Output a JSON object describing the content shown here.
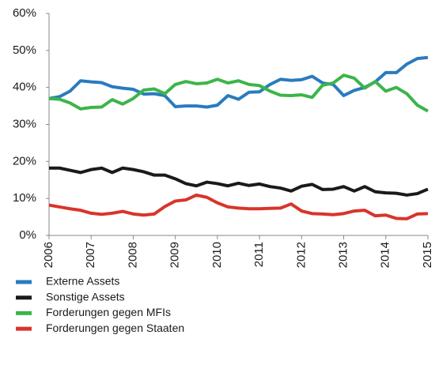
{
  "chart_data": {
    "type": "line",
    "x": [
      2006,
      2006.25,
      2006.5,
      2006.75,
      2007,
      2007.25,
      2007.5,
      2007.75,
      2008,
      2008.25,
      2008.5,
      2008.75,
      2009,
      2009.25,
      2009.5,
      2009.75,
      2010,
      2010.25,
      2010.5,
      2010.75,
      2011,
      2011.25,
      2011.5,
      2011.75,
      2012,
      2012.25,
      2012.5,
      2012.75,
      2013,
      2013.25,
      2013.5,
      2013.75,
      2014,
      2014.25,
      2014.5,
      2014.75,
      2015
    ],
    "xlim": [
      2006,
      2015
    ],
    "xticks": [
      2006,
      2007,
      2008,
      2009,
      2010,
      2011,
      2012,
      2013,
      2014,
      2015
    ],
    "ylim": [
      0,
      60
    ],
    "yticks": [
      {
        "value": 0,
        "label": "0%"
      },
      {
        "value": 10,
        "label": "10%"
      },
      {
        "value": 20,
        "label": "20%"
      },
      {
        "value": 30,
        "label": "30%"
      },
      {
        "value": 40,
        "label": "40%"
      },
      {
        "value": 50,
        "label": "50%"
      },
      {
        "value": 60,
        "label": "60%"
      }
    ],
    "series": [
      {
        "name": "Externe Assets",
        "color": "#2a7bbf",
        "values": [
          37,
          37.5,
          39,
          41.8,
          41.5,
          41.3,
          40.2,
          39.8,
          39.5,
          38.2,
          38.3,
          37.8,
          34.8,
          35,
          35,
          34.7,
          35.2,
          37.8,
          36.8,
          38.7,
          38.8,
          40.8,
          42.2,
          41.9,
          42.1,
          43,
          41.2,
          40.8,
          37.8,
          39.2,
          40,
          41.5,
          44,
          44,
          46.3,
          47.8,
          48.1
        ]
      },
      {
        "name": "Sonstige Assets",
        "color": "#1a1a1a",
        "values": [
          18.2,
          18.2,
          17.6,
          17,
          17.8,
          18.2,
          17,
          18.2,
          17.8,
          17.2,
          16.3,
          16.3,
          15.3,
          14,
          13.4,
          14.4,
          14,
          13.4,
          14.1,
          13.5,
          13.9,
          13.2,
          12.8,
          12,
          13.3,
          13.8,
          12.4,
          12.5,
          13.2,
          12,
          13.2,
          11.8,
          11.5,
          11.4,
          10.9,
          11.3,
          12.5
        ]
      },
      {
        "name": "Forderungen gegen MFIs",
        "color": "#3cb54a",
        "values": [
          37,
          36.8,
          35.8,
          34.2,
          34.6,
          34.7,
          36.7,
          35.5,
          37,
          39.3,
          39.6,
          38.3,
          40.8,
          41.6,
          41,
          41.2,
          42.2,
          41.2,
          41.8,
          40.8,
          40.5,
          39,
          37.9,
          37.8,
          38,
          37.3,
          40.6,
          41.2,
          43.3,
          42.5,
          39.8,
          41.6,
          39,
          40,
          38.3,
          35.2,
          33.6
        ]
      },
      {
        "name": "Forderungen gegen Staaten",
        "color": "#d9342b",
        "values": [
          8.2,
          7.7,
          7.2,
          6.8,
          6,
          5.7,
          6,
          6.5,
          5.8,
          5.5,
          5.8,
          7.8,
          9.3,
          9.6,
          10.9,
          10.3,
          8.8,
          7.7,
          7.4,
          7.2,
          7.2,
          7.3,
          7.4,
          8.5,
          6.6,
          5.9,
          5.8,
          5.6,
          5.9,
          6.6,
          6.8,
          5.3,
          5.5,
          4.6,
          4.5,
          5.8,
          5.9
        ]
      }
    ]
  }
}
